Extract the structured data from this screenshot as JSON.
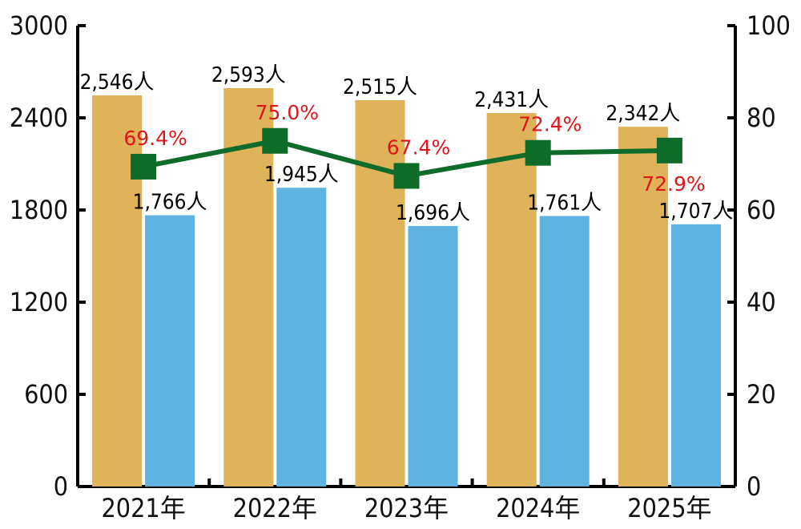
{
  "chart_data": {
    "type": "bar",
    "categories": [
      "2021年",
      "2022年",
      "2023年",
      "2024年",
      "2025年"
    ],
    "series": [
      {
        "type": "bar",
        "axis": "left",
        "color": "#dfb35a",
        "values": [
          2546,
          2593,
          2515,
          2431,
          2342
        ],
        "labels": [
          "2,546人",
          "2,593人",
          "2,515人",
          "2,431人",
          "2,342人"
        ]
      },
      {
        "type": "bar",
        "axis": "left",
        "color": "#5eb3e0",
        "values": [
          1766,
          1945,
          1696,
          1761,
          1707
        ],
        "labels": [
          "1,766人",
          "1,945人",
          "1,696人",
          "1,761人",
          "1,707人"
        ]
      },
      {
        "type": "line",
        "axis": "right",
        "color": "#0e6b2a",
        "label_color": "#e0151b",
        "values": [
          69.4,
          75.0,
          67.4,
          72.4,
          72.9
        ],
        "labels": [
          "69.4%",
          "75.0%",
          "67.4%",
          "72.4%",
          "72.9%"
        ]
      }
    ],
    "left_axis": {
      "ylim": [
        0,
        3000
      ],
      "ticks": [
        "0",
        "600",
        "1200",
        "1800",
        "2400",
        "3000"
      ]
    },
    "right_axis": {
      "ylim": [
        0,
        100
      ],
      "ticks": [
        "0",
        "20",
        "40",
        "60",
        "80",
        "100"
      ]
    },
    "legend": "none",
    "grid": false
  }
}
